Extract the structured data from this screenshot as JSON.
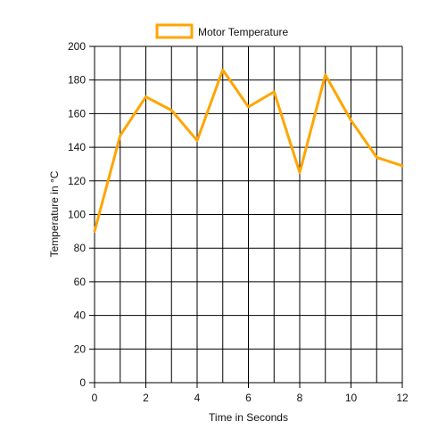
{
  "chart_data": {
    "type": "line",
    "title": "",
    "xlabel": "Time in Seconds",
    "ylabel": "Temperature in °C",
    "xlim": [
      0,
      12
    ],
    "ylim": [
      0,
      200
    ],
    "x_ticks": [
      0,
      2,
      4,
      6,
      8,
      10,
      12
    ],
    "y_ticks": [
      0,
      20,
      40,
      60,
      80,
      100,
      120,
      140,
      160,
      180,
      200
    ],
    "grid": true,
    "legend_position": "top-center",
    "series": [
      {
        "name": "Motor Temperature",
        "color": "#ffa500",
        "x": [
          0,
          1,
          2,
          3,
          4,
          5,
          6,
          7,
          8,
          9,
          10,
          11,
          12
        ],
        "values": [
          90,
          147,
          170,
          162,
          144,
          186,
          164,
          173,
          125,
          183,
          156,
          134,
          129
        ]
      }
    ]
  }
}
